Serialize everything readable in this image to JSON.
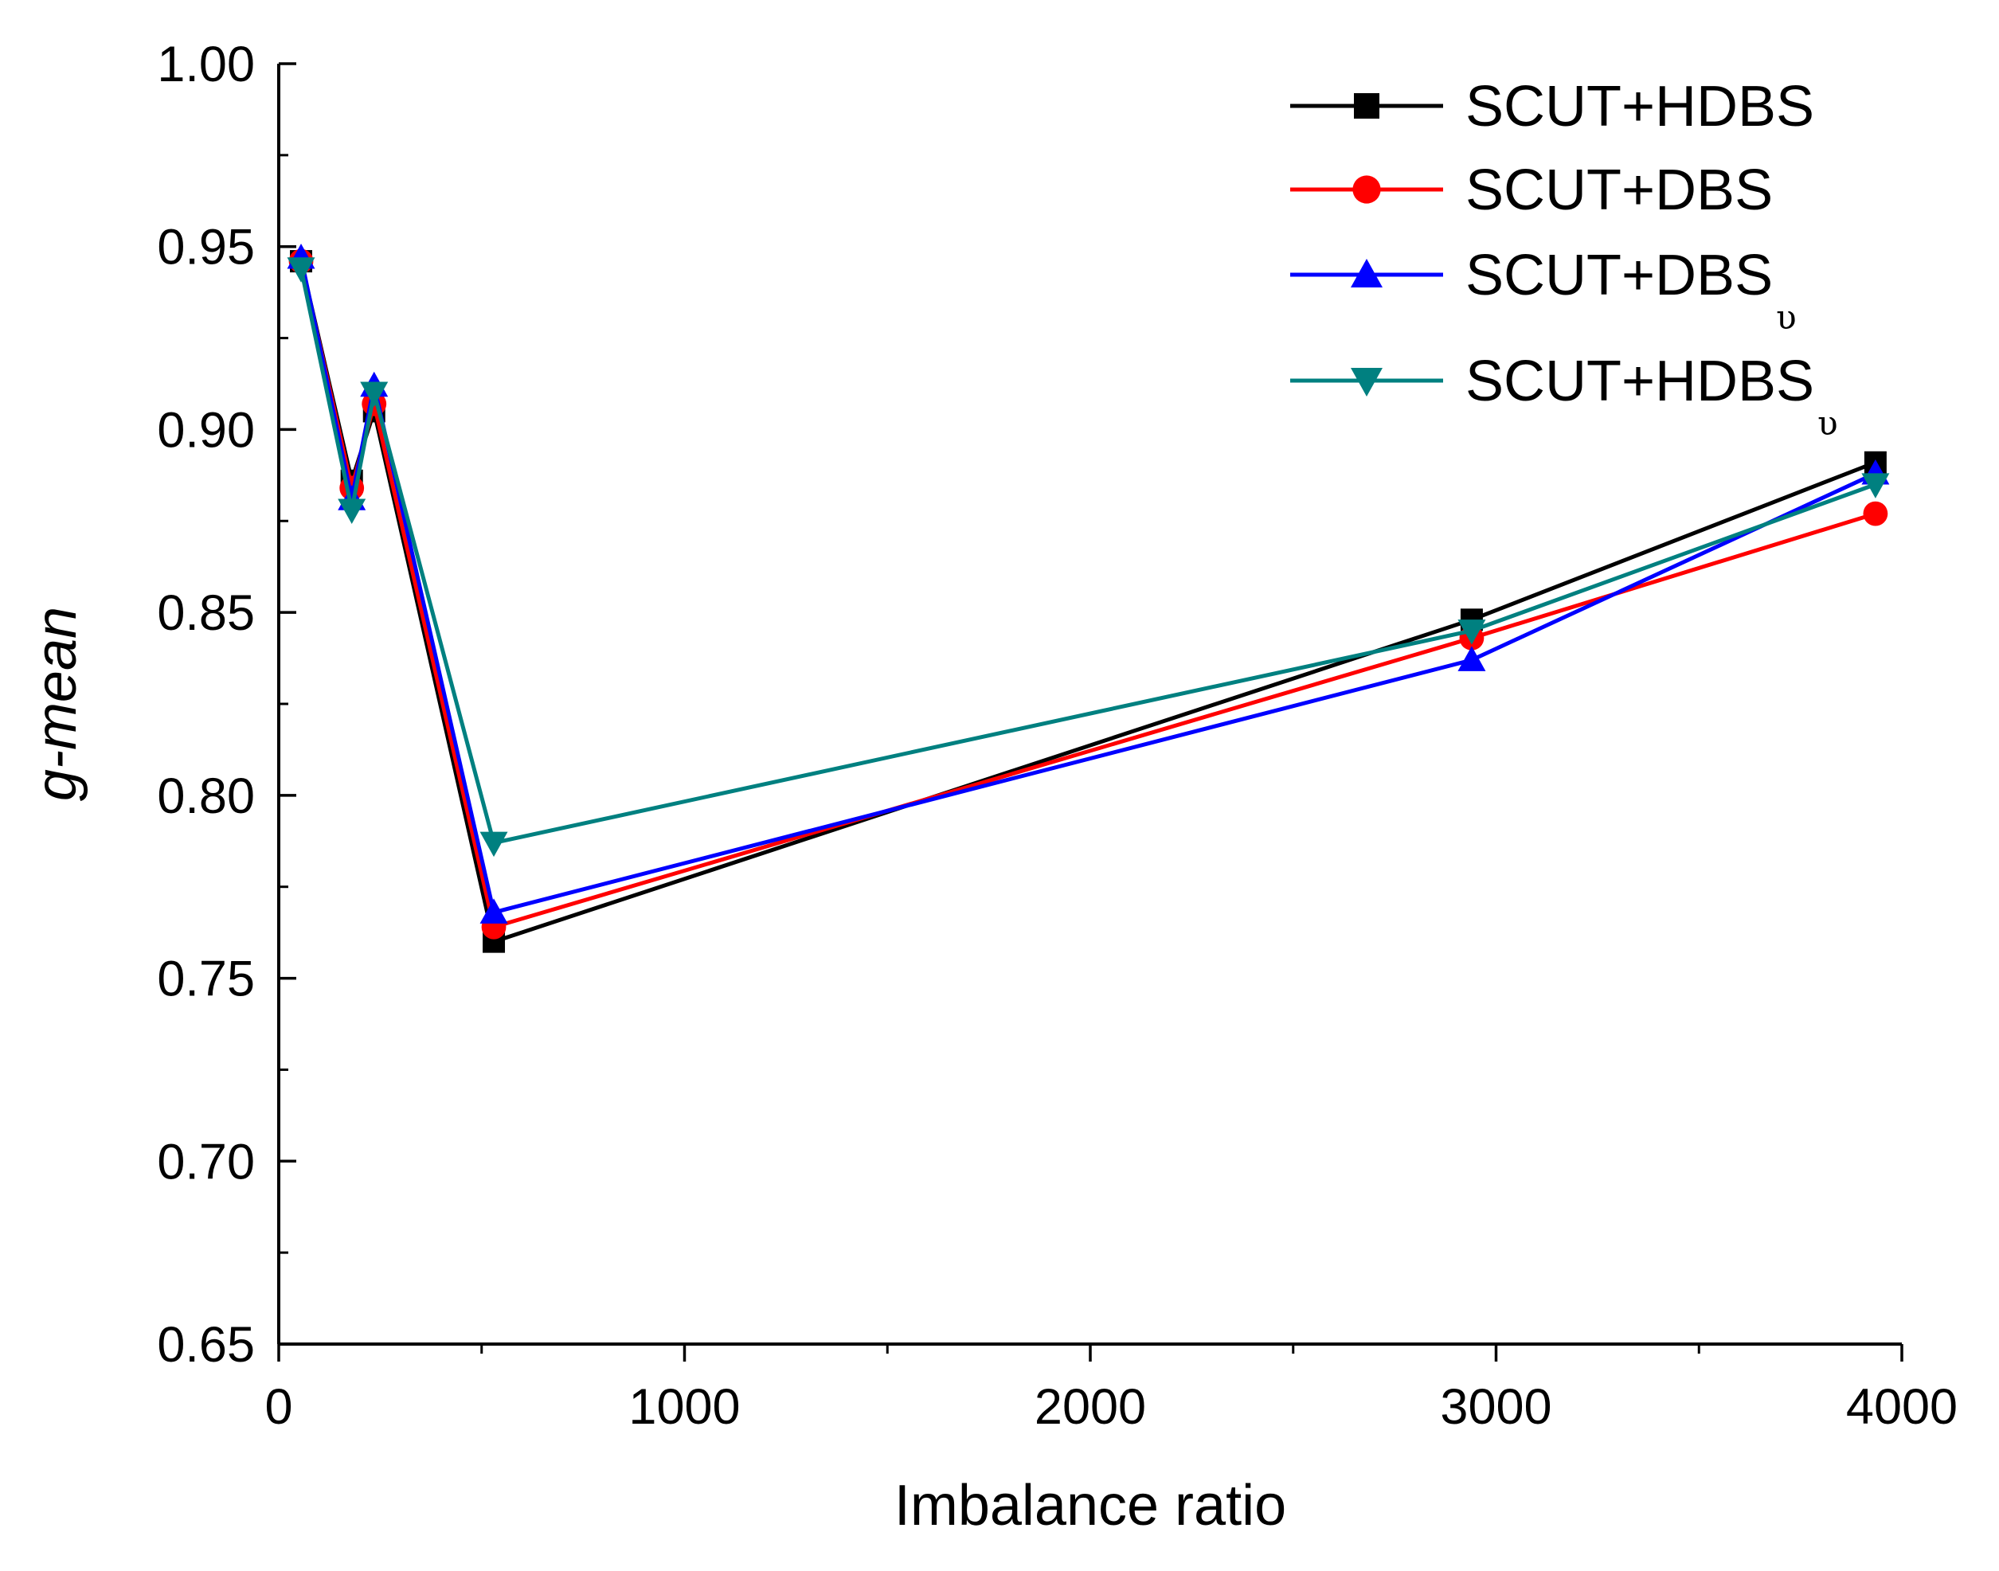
{
  "chart_data": {
    "type": "line",
    "title": "",
    "xlabel": "Imbalance ratio",
    "ylabel": "g-mean",
    "xlim": [
      0,
      4000
    ],
    "ylim": [
      0.65,
      1.0
    ],
    "x_ticks": [
      0,
      1000,
      2000,
      3000,
      4000
    ],
    "y_ticks": [
      0.65,
      0.7,
      0.75,
      0.8,
      0.85,
      0.9,
      0.95,
      1.0
    ],
    "x_tick_labels": [
      "0",
      "1000",
      "2000",
      "3000",
      "4000"
    ],
    "y_tick_labels": [
      "0.65",
      "0.70",
      "0.75",
      "0.80",
      "0.85",
      "0.90",
      "0.95",
      "1.00"
    ],
    "legend_position": "top-right",
    "grid": false,
    "x": [
      55,
      180,
      235,
      530,
      2940,
      3935
    ],
    "series": [
      {
        "name": "SCUT+HDBS",
        "subscript": "",
        "color": "#000000",
        "marker": "square",
        "values": [
          0.946,
          0.886,
          0.905,
          0.76,
          0.848,
          0.891
        ]
      },
      {
        "name": "SCUT+DBS",
        "subscript": "",
        "color": "#ff0000",
        "marker": "circle",
        "values": [
          0.946,
          0.884,
          0.907,
          0.764,
          0.843,
          0.877
        ]
      },
      {
        "name": "SCUT+DBS",
        "subscript": "υ",
        "color": "#0000ff",
        "marker": "triangle-up",
        "values": [
          0.947,
          0.881,
          0.912,
          0.768,
          0.837,
          0.888
        ]
      },
      {
        "name": "SCUT+HDBS",
        "subscript": "υ",
        "color": "#008080",
        "marker": "triangle-down",
        "values": [
          0.944,
          0.878,
          0.91,
          0.787,
          0.845,
          0.885
        ]
      }
    ]
  }
}
